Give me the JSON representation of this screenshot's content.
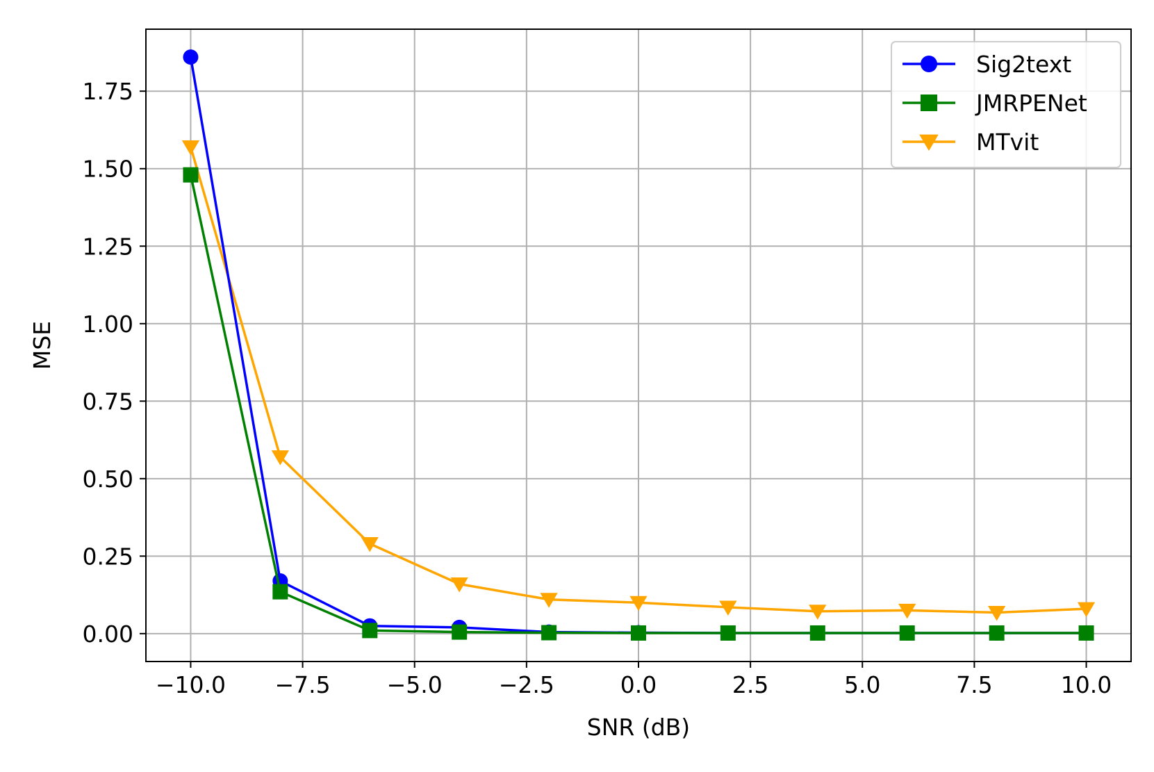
{
  "chart_data": {
    "type": "line",
    "xlabel": "SNR (dB)",
    "ylabel": "MSE",
    "xlim": [
      -11.0,
      11.0
    ],
    "ylim": [
      -0.09,
      1.95
    ],
    "grid": true,
    "legend_position": "top-right",
    "x": [
      -10,
      -8,
      -6,
      -4,
      -2,
      0,
      2,
      4,
      6,
      8,
      10
    ],
    "x_ticks": [
      -10.0,
      -7.5,
      -5.0,
      -2.5,
      0.0,
      2.5,
      5.0,
      7.5,
      10.0
    ],
    "x_tick_labels": [
      "−10.0",
      "−7.5",
      "−5.0",
      "−2.5",
      "0.0",
      "2.5",
      "5.0",
      "7.5",
      "10.0"
    ],
    "y_ticks": [
      0.0,
      0.25,
      0.5,
      0.75,
      1.0,
      1.25,
      1.5,
      1.75
    ],
    "y_tick_labels": [
      "0.00",
      "0.25",
      "0.50",
      "0.75",
      "1.00",
      "1.25",
      "1.50",
      "1.75"
    ],
    "series": [
      {
        "name": "Sig2text",
        "color": "#0000ff",
        "marker": "circle",
        "values": [
          1.86,
          0.17,
          0.025,
          0.02,
          0.005,
          0.003,
          0.002,
          0.002,
          0.002,
          0.002,
          0.002
        ]
      },
      {
        "name": "JMRPENet",
        "color": "#008000",
        "marker": "square",
        "values": [
          1.48,
          0.135,
          0.01,
          0.005,
          0.003,
          0.002,
          0.002,
          0.002,
          0.002,
          0.002,
          0.002
        ]
      },
      {
        "name": "MTvit",
        "color": "#ffa500",
        "marker": "triangle-down",
        "values": [
          1.57,
          0.57,
          0.29,
          0.16,
          0.11,
          0.1,
          0.085,
          0.072,
          0.075,
          0.068,
          0.08
        ]
      }
    ]
  }
}
